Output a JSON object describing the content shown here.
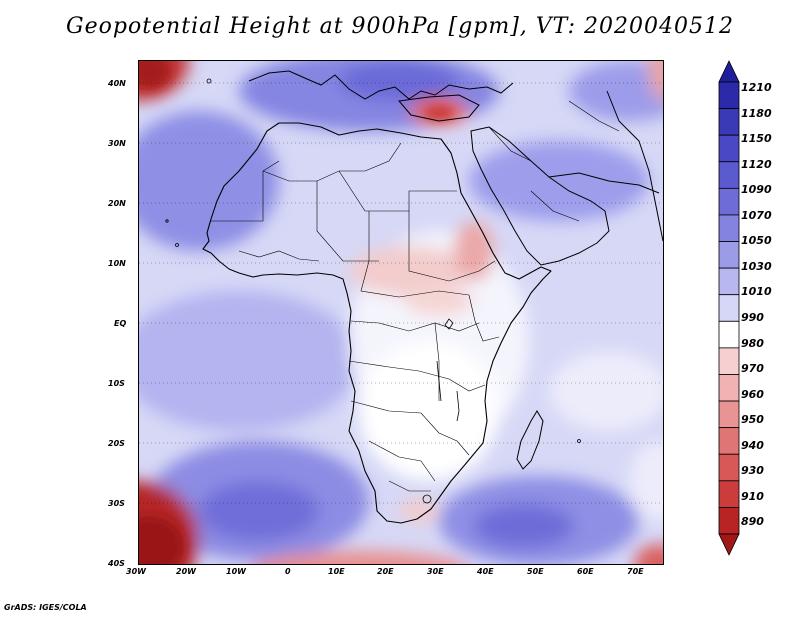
{
  "title": "Geopotential Height at 900hPa [gpm], VT: 2020040512",
  "credit": "GrADS: IGES/COLA",
  "map": {
    "lat_labels": [
      "40N",
      "30N",
      "20N",
      "10N",
      "EQ",
      "10S",
      "20S",
      "30S",
      "40S"
    ],
    "lon_labels": [
      "30W",
      "20W",
      "10W",
      "0",
      "10E",
      "20E",
      "30E",
      "40E",
      "50E",
      "60E",
      "70E"
    ]
  },
  "colorbar": {
    "labels": [
      "1210",
      "1180",
      "1150",
      "1120",
      "1090",
      "1070",
      "1050",
      "1030",
      "1010",
      "990",
      "980",
      "970",
      "960",
      "950",
      "940",
      "930",
      "910",
      "890"
    ],
    "colors": [
      "#1f1e9c",
      "#2c2aa8",
      "#3a39b6",
      "#4a48c4",
      "#5b5acf",
      "#6e6dd8",
      "#8483e0",
      "#9c9be8",
      "#b8b7f0",
      "#d6d6f6",
      "#ffffff",
      "#f6d0d0",
      "#f0b2b2",
      "#e89494",
      "#e07575",
      "#d85858",
      "#cc3c3c",
      "#b82424",
      "#a01818"
    ]
  }
}
